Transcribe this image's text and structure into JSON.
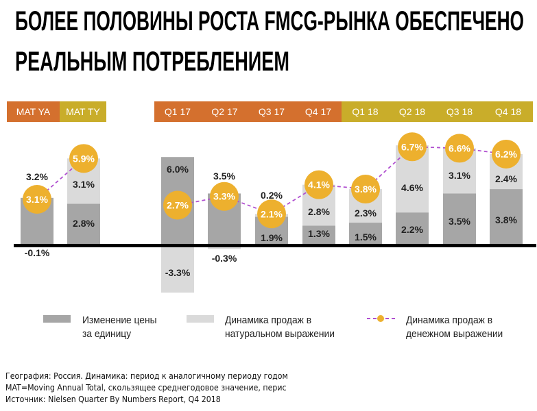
{
  "title": {
    "line1": "БОЛЕЕ ПОЛОВИНЫ РОСТА FMCG-РЫНКА ОБЕСПЕЧЕНО",
    "line2": "РЕАЛЬНЫМ ПОТРЕБЛЕНИЕМ"
  },
  "chart_data": {
    "type": "bar",
    "stacked": true,
    "categories": [
      "MAT YA",
      "MAT TY",
      "Q1 17",
      "Q2 17",
      "Q3 17",
      "Q4 17",
      "Q1 18",
      "Q2 18",
      "Q3 18",
      "Q4 18"
    ],
    "series": [
      {
        "name": "Изменение цены за единицу",
        "type": "bar",
        "color": "#a6a6a6",
        "values": [
          3.2,
          2.8,
          6.0,
          3.5,
          1.9,
          1.3,
          1.5,
          2.2,
          3.5,
          3.8
        ],
        "labels": [
          "3.2%",
          "2.8%",
          "6.0%",
          "3.5%",
          "1.9%",
          "1.3%",
          "1.5%",
          "2.2%",
          "3.5%",
          "3.8%"
        ]
      },
      {
        "name": "Динамика продаж в натуральном выражении",
        "type": "bar",
        "color": "#dadada",
        "values": [
          -0.1,
          3.1,
          -3.3,
          -0.3,
          0.2,
          2.8,
          2.3,
          4.6,
          3.1,
          2.4
        ],
        "labels": [
          "-0.1%",
          "3.1%",
          "-3.3%",
          "-0.3%",
          "0.2%",
          "2.8%",
          "2.3%",
          "4.6%",
          "3.1%",
          "2.4%"
        ]
      },
      {
        "name": "Динамика продаж в денежном выражении",
        "type": "line",
        "color": "#edb02e",
        "line_color": "#b04fd0",
        "values": [
          3.1,
          5.9,
          2.7,
          3.3,
          2.1,
          4.1,
          3.8,
          6.7,
          6.6,
          6.2
        ],
        "labels": [
          "3.1%",
          "5.9%",
          "2.7%",
          "3.3%",
          "2.1%",
          "4.1%",
          "3.8%",
          "6.7%",
          "6.6%",
          "6.2%"
        ]
      }
    ],
    "header_colors": [
      "#d4702e",
      "#c9ad2a",
      "#d4702e",
      "#d4702e",
      "#d4702e",
      "#d4702e",
      "#c9ad2a",
      "#c9ad2a",
      "#c9ad2a",
      "#c9ad2a"
    ],
    "legend": [
      "Изменение цены",
      "за единицу",
      "Динамика продаж в",
      "натуральном выражении",
      "Динамика продаж в",
      "денежном выражении"
    ],
    "legend_position": "bottom",
    "grid": false
  },
  "footer": {
    "geography": "География: Россия. Динамика: период к аналогичному периоду годом",
    "mat": "MAT=Moving Annual Total, скользящее среднегодовое значение, перис",
    "source": "Источник: Nielsen Quarter By Numbers Report, Q4 2018"
  }
}
